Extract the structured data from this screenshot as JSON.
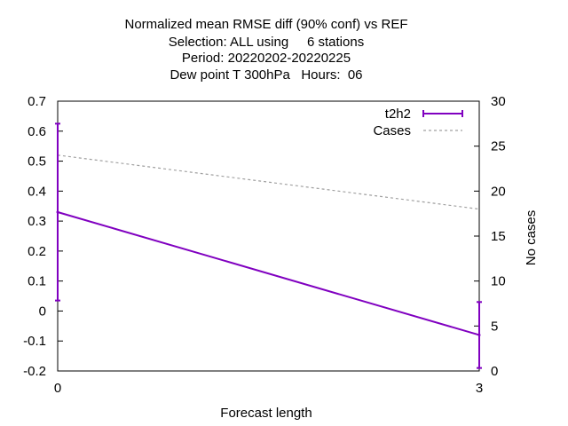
{
  "chart_data": {
    "type": "line",
    "title_lines": [
      "Normalized mean RMSE diff (90% conf) vs REF",
      "Selection: ALL using     6 stations",
      "Period: 20220202-20220225",
      "Dew point T 300hPa   Hours:  06"
    ],
    "xlabel": "Forecast length",
    "ylabel": "",
    "y2label": "No cases",
    "x": [
      0,
      3
    ],
    "xlim": [
      0,
      3
    ],
    "xticks": [
      "0",
      "3"
    ],
    "ylim": [
      -0.2,
      0.7
    ],
    "yticks": [
      "-0.2",
      "-0.1",
      "0",
      "0.1",
      "0.2",
      "0.3",
      "0.4",
      "0.5",
      "0.6",
      "0.7"
    ],
    "y2lim": [
      0,
      30
    ],
    "y2ticks": [
      "0",
      "5",
      "10",
      "15",
      "20",
      "25",
      "30"
    ],
    "grid": false,
    "legend_position": "top-right",
    "series": [
      {
        "name": "t2h2",
        "axis": "y1",
        "color": "#8000c0",
        "values": [
          0.33,
          -0.08
        ],
        "error_low": [
          0.035,
          -0.19
        ],
        "error_high": [
          0.625,
          0.03
        ]
      },
      {
        "name": "Cases",
        "axis": "y2",
        "color": "#a0a0a0",
        "dashed": true,
        "values": [
          24,
          18
        ]
      }
    ]
  }
}
